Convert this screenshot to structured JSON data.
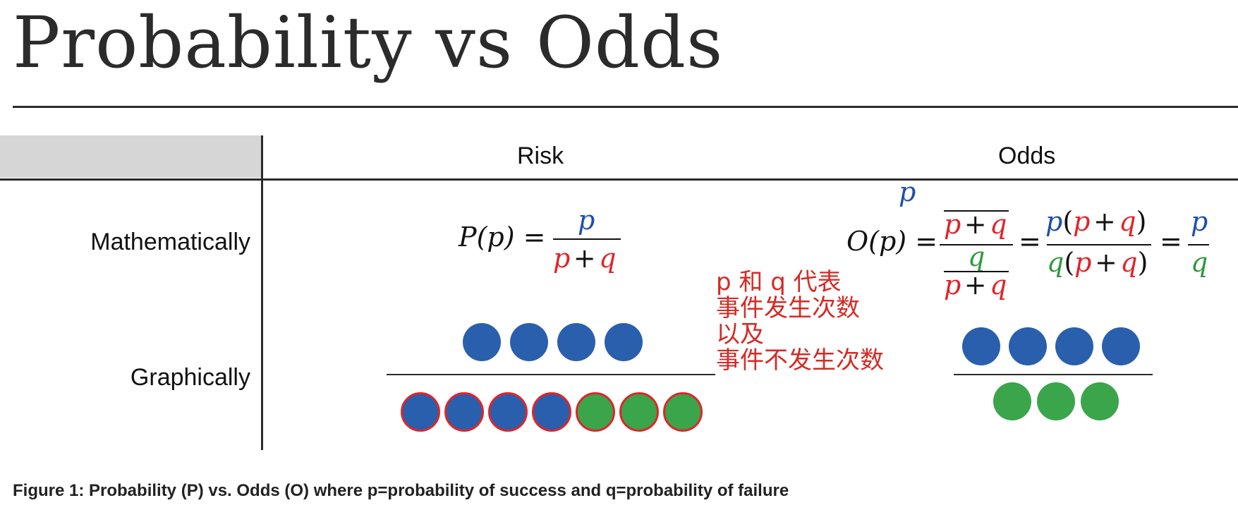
{
  "title": "Probability vs Odds",
  "columns": {
    "risk": "Risk",
    "odds": "Odds"
  },
  "rows": {
    "math": "Mathematically",
    "graph": "Graphically"
  },
  "risk_formula": {
    "lhs": "P(p) =",
    "numerator": "p",
    "den_p": "p",
    "den_plus": "+",
    "den_q": "q"
  },
  "odds_formula": {
    "lhs": "O(p) =",
    "inner_num": "p",
    "inner_den_p": "p",
    "inner_den_plus": "+",
    "inner_den_q": "q",
    "inner2_num": "q",
    "inner2_den_p": "p",
    "inner2_den_plus": "+",
    "inner2_den_q": "q",
    "eq1": "=",
    "mid_num_p": "p",
    "mid_num_open": "(",
    "mid_num_p2": "p",
    "mid_num_plus": "+",
    "mid_num_q": "q",
    "mid_num_close": ")",
    "mid_den_q": "q",
    "mid_den_open": "(",
    "mid_den_p": "p",
    "mid_den_plus": "+",
    "mid_den_q2": "q",
    "mid_den_close": ")",
    "eq2": "=",
    "final_num": "p",
    "final_den": "q"
  },
  "note_lines": [
    "p 和 q 代表",
    "事件发生次数",
    "以及",
    "事件不发生次数"
  ],
  "graph": {
    "risk_numerator_success": 4,
    "risk_denominator_success": 4,
    "risk_denominator_failure": 3,
    "odds_numerator_success": 4,
    "odds_denominator_failure": 3
  },
  "colors": {
    "success": "#2a5fad",
    "failure": "#3aa54b",
    "highlight": "#e0252a"
  },
  "caption": "Figure 1: Probability (P) vs. Odds (O) where p=probability of success and q=probability of failure"
}
